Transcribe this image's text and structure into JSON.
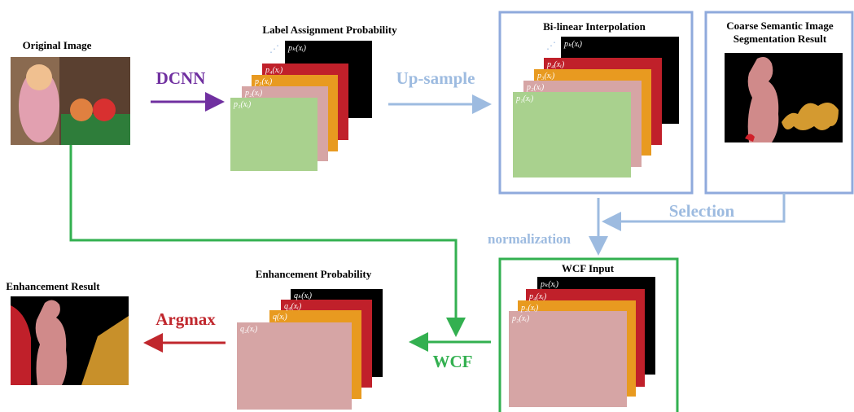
{
  "original_image": {
    "title": "Original Image"
  },
  "steps": {
    "dcnn": "DCNN",
    "upsample": "Up-sample",
    "selection": "Selection",
    "normalization": "normalization",
    "wcf": "WCF",
    "argmax": "Argmax"
  },
  "label_assignment": {
    "title": "Label Assignment Probability",
    "layers": [
      "pₖ(xᵢ)",
      "p₄(xᵢ)",
      "p₃(xᵢ)",
      "p₂(xᵢ)",
      "p₁(xᵢ)"
    ]
  },
  "bilinear": {
    "title": "Bi-linear Interpolation",
    "layers": [
      "pₖ(xᵢ)",
      "p₄(xᵢ)",
      "p₃(xᵢ)",
      "p₂(xᵢ)",
      "p₁(xᵢ)"
    ]
  },
  "coarse": {
    "title_lines": [
      "Coarse Semantic Image",
      "Segmentation Result"
    ]
  },
  "wcf_input": {
    "title": "WCF Input",
    "layers": [
      "pₖ(xᵢ)",
      "p₄(xᵢ)",
      "p₃(xᵢ)",
      "p₂(xᵢ)"
    ]
  },
  "enhancement_probability": {
    "title": "Enhancement Probability",
    "layers": [
      "qₖ(xᵢ)",
      "q₄(xᵢ)",
      "q(xᵢ)",
      "q₂(xᵢ)"
    ]
  },
  "enhancement_result": {
    "title": "Enhancement Result"
  }
}
